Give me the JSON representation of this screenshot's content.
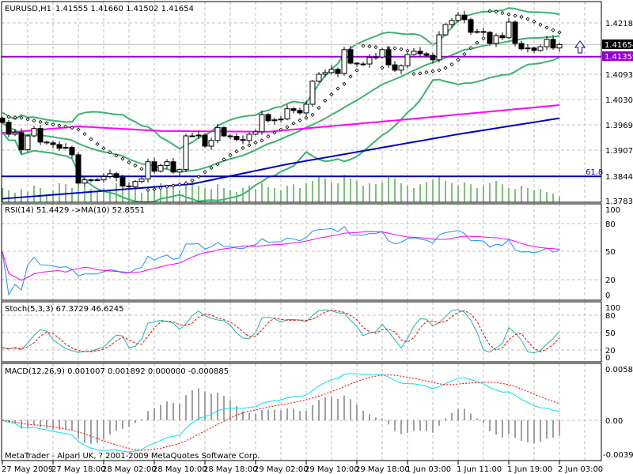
{
  "window": {
    "title": "EURUSD,H1",
    "ohlc_readout": "1.41555 1.41660 1.41502 1.41654",
    "copyright": "MetaTrader - Alpari UK, ? 2001-2009 MetaQuotes Software Corp."
  },
  "price_axis": {
    "labels": [
      "1.42180",
      "1.40935",
      "1.40305",
      "1.39690",
      "1.39075",
      "1.38445",
      "1.37830"
    ],
    "bid_label": "1.41654",
    "line_label": "1.41359",
    "fibo_label": "61.8"
  },
  "rsi_panel": {
    "title": "RSI(14) 51.4429  ->MA(10) 52.8551",
    "levels": [
      "100",
      "80",
      "50",
      "20",
      "0"
    ]
  },
  "stoch_panel": {
    "title": "Stoch(5,3,3) 67.3729 46.6245",
    "levels": [
      "100",
      "80",
      "50",
      "20",
      "0"
    ]
  },
  "macd_panel": {
    "title": "MACD(12,26,9) 0.001007 0.001892 0.000000 -0.000885",
    "levels": [
      "0.005834",
      "0.00",
      "-0.00398"
    ]
  },
  "time_axis": [
    "27 May 2009",
    "27 May 18:00",
    "28 May 02:00",
    "28 May 10:00",
    "28 May 18:00",
    "29 May 02:00",
    "29 May 10:00",
    "29 May 18:00",
    "1 Jun 03:00",
    "1 Jun 11:00",
    "1 Jun 19:00",
    "2 Jun 03:00"
  ],
  "colors": {
    "bollinger": "#3cb371",
    "ma_fast": "#ff00ff",
    "ma_slow": "#0000c8",
    "fibo": "#0000aa",
    "hline": "#9400d3",
    "volume": "#008000",
    "rsi": "#1e90ff",
    "stoch": "#20b2aa",
    "signal": "#ff0000",
    "macd": "#00e5ee",
    "arrow": "#000080"
  },
  "chart_data": {
    "type": "candlestick",
    "symbol": "EURUSD",
    "timeframe": "H1",
    "ylim": [
      1.3783,
      1.4268
    ],
    "close": [
      1.3976,
      1.3947,
      1.3951,
      1.3909,
      1.3943,
      1.3961,
      1.3928,
      1.3926,
      1.3922,
      1.3913,
      1.3915,
      1.3897,
      1.3828,
      1.3836,
      1.3836,
      1.3836,
      1.3844,
      1.3851,
      1.3842,
      1.3821,
      1.3819,
      1.3832,
      1.3838,
      1.388,
      1.3857,
      1.3871,
      1.388,
      1.3855,
      1.3861,
      1.3943,
      1.3943,
      1.3945,
      1.3918,
      1.3932,
      1.3963,
      1.3943,
      1.3942,
      1.3934,
      1.3932,
      1.3947,
      1.3953,
      1.3995,
      1.398,
      1.3982,
      1.3984,
      1.4009,
      1.4005,
      1.3999,
      1.402,
      1.4076,
      1.4093,
      1.4097,
      1.4105,
      1.4095,
      1.4153,
      1.412,
      1.4118,
      1.4118,
      1.4134,
      1.4135,
      1.4153,
      1.4116,
      1.4103,
      1.4114,
      1.4141,
      1.4149,
      1.4143,
      1.4139,
      1.4128,
      1.4189,
      1.4214,
      1.4224,
      1.4237,
      1.4226,
      1.4195,
      1.4197,
      1.4195,
      1.4168,
      1.4187,
      1.4182,
      1.422,
      1.4168,
      1.4155,
      1.4157,
      1.4151,
      1.416,
      1.4178,
      1.4157,
      1.41654
    ],
    "volume": [
      30,
      25,
      20,
      28,
      22,
      35,
      30,
      18,
      25,
      40,
      38,
      30,
      45,
      35,
      28,
      22,
      30,
      25,
      40,
      35,
      30,
      25,
      20,
      30,
      35,
      40,
      28,
      32,
      25,
      45,
      50,
      35,
      30,
      28,
      38,
      30,
      25,
      22,
      30,
      35,
      28,
      40,
      32,
      30,
      25,
      35,
      38,
      30,
      40,
      45,
      55,
      50,
      42,
      40,
      58,
      50,
      45,
      35,
      40,
      38,
      42,
      55,
      50,
      40,
      35,
      30,
      38,
      42,
      48,
      55,
      45,
      40,
      35,
      42,
      38,
      30,
      35,
      40,
      45,
      38,
      30,
      28,
      35,
      30,
      25,
      28,
      22,
      18,
      12
    ],
    "ma_fast_points": [
      [
        0,
        1.395
      ],
      [
        12,
        1.3966
      ],
      [
        25,
        1.3955
      ],
      [
        42,
        1.3953
      ],
      [
        63,
        1.3982
      ],
      [
        88,
        1.4018
      ]
    ],
    "ma_slow_points": [
      [
        0,
        1.379
      ],
      [
        30,
        1.3826
      ],
      [
        45,
        1.3874
      ],
      [
        72,
        1.3947
      ],
      [
        88,
        1.3986
      ]
    ],
    "hlines": {
      "fibo_61_8": 1.38445,
      "purple": 1.41359,
      "bid": 1.41654
    },
    "rsi_ylim": [
      0,
      100
    ],
    "stoch_ylim": [
      0,
      100
    ],
    "macd_ylim": [
      -0.00398,
      0.005834
    ]
  }
}
